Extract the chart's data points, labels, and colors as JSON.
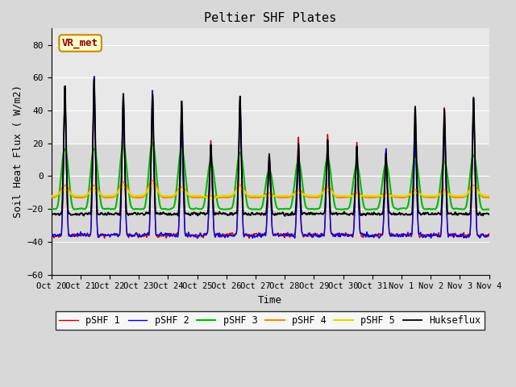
{
  "title": "Peltier SHF Plates",
  "xlabel": "Time",
  "ylabel": "Soil Heat Flux ( W/m2)",
  "ylim": [
    -60,
    90
  ],
  "yticks": [
    -60,
    -40,
    -20,
    0,
    20,
    40,
    60,
    80
  ],
  "xlim": [
    0,
    15
  ],
  "x_tick_labels": [
    "Oct 20",
    "Oct 21",
    "Oct 22",
    "Oct 23",
    "Oct 24",
    "Oct 25",
    "Oct 26",
    "Oct 27",
    "Oct 28",
    "Oct 29",
    "Oct 30",
    "Oct 31",
    "Nov 1",
    "Nov 2",
    "Nov 3",
    "Nov 4"
  ],
  "annotation_text": "VR_met",
  "annotation_bg": "#ffffcc",
  "annotation_edge": "#cc8800",
  "line_colors": {
    "pSHF 1": "#cc0000",
    "pSHF 2": "#0000ee",
    "pSHF 3": "#00bb00",
    "pSHF 4": "#ff8800",
    "pSHF 5": "#dddd00",
    "Hukseflux": "#000000"
  },
  "legend_labels": [
    "pSHF 1",
    "pSHF 2",
    "pSHF 3",
    "pSHF 4",
    "pSHF 5",
    "Hukseflux"
  ],
  "bg_color": "#d8d8d8",
  "title_fontsize": 11,
  "label_fontsize": 9,
  "day_peaks_shf1": [
    65,
    70,
    60,
    62,
    56,
    28,
    57,
    20,
    30,
    32,
    26,
    20,
    51,
    50,
    57
  ],
  "day_peaks_shf2": [
    66,
    72,
    61,
    63,
    37,
    26,
    58,
    19,
    16,
    26,
    24,
    23,
    30,
    42,
    58
  ],
  "day_peaks_shf3": [
    18,
    18,
    20,
    22,
    18,
    10,
    16,
    5,
    10,
    12,
    8,
    8,
    12,
    10,
    14
  ],
  "day_peaks_shf4": [
    -5,
    -5,
    -3,
    -2,
    -6,
    -12,
    -5,
    -10,
    -8,
    -6,
    -10,
    -10,
    -8,
    -8,
    -5
  ],
  "day_peaks_shf5": [
    -8,
    -8,
    -6,
    -5,
    -8,
    -14,
    -7,
    -12,
    -10,
    -8,
    -12,
    -12,
    -10,
    -10,
    -7
  ],
  "day_peaks_hux": [
    65,
    70,
    60,
    60,
    55,
    25,
    57,
    18,
    25,
    27,
    22,
    18,
    50,
    48,
    57
  ],
  "night_base_shf1": -36,
  "night_base_shf2": -36,
  "night_base_shf3": -20,
  "night_base_shf4": -13,
  "night_base_shf5": -12,
  "night_base_hux": -23
}
